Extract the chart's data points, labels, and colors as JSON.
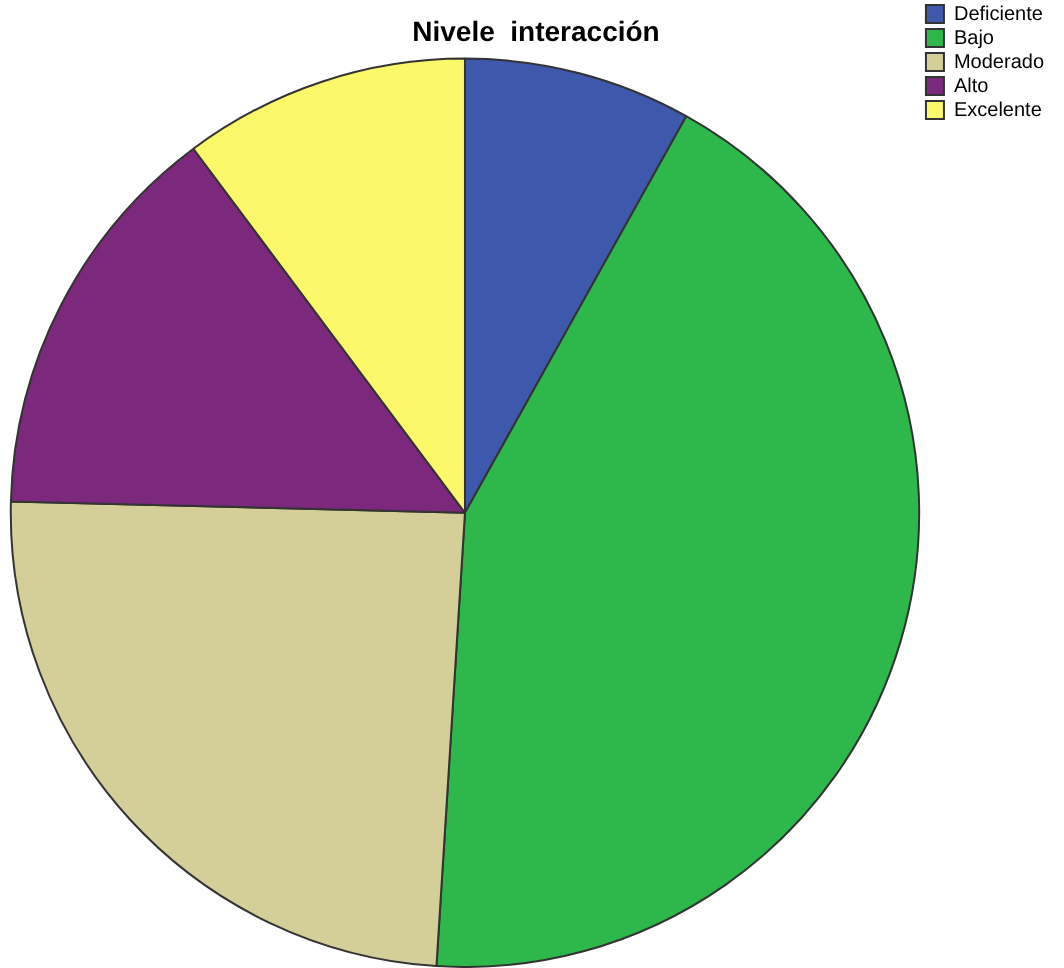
{
  "chart_data": {
    "type": "pie",
    "title": "Nivele  interacción",
    "categories": [
      "Deficiente",
      "Bajo",
      "Moderado",
      "Alto",
      "Excelente"
    ],
    "values": [
      8.1,
      42.9,
      24.4,
      14.4,
      10.2
    ],
    "colors": [
      "#3e58ac",
      "#2eb84b",
      "#d4cf98",
      "#7c287c",
      "#fbf86a"
    ],
    "legend": "top right"
  }
}
